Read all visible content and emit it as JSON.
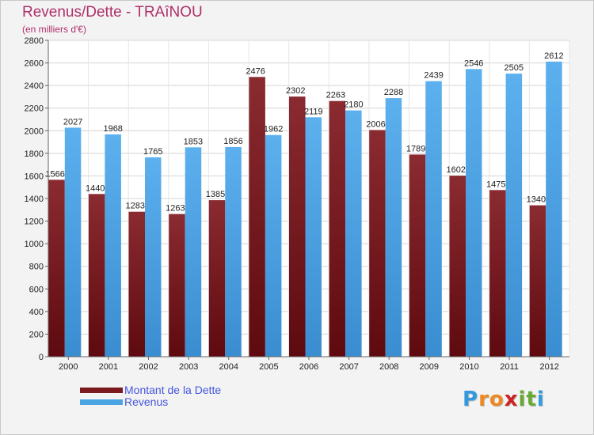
{
  "header": {
    "title": "Revenus/Dette - TRAîNOU",
    "subtitle": "(en milliers d'€)"
  },
  "legend": {
    "items": [
      {
        "label": "Montant de la Dette",
        "color": "#7a1a1f"
      },
      {
        "label": "Revenus",
        "color": "#4aa3e3"
      }
    ]
  },
  "logo": {
    "letters": [
      {
        "ch": "P",
        "color": "#3399dd"
      },
      {
        "ch": "r",
        "color": "#ee8822"
      },
      {
        "ch": "o",
        "color": "#ee8822"
      },
      {
        "ch": "x",
        "color": "#cc2222"
      },
      {
        "ch": "i",
        "color": "#66aa33"
      },
      {
        "ch": "t",
        "color": "#66aa33"
      },
      {
        "ch": "i",
        "color": "#3399dd"
      }
    ]
  },
  "chart_data": {
    "type": "bar",
    "categories": [
      "2000",
      "2001",
      "2002",
      "2003",
      "2004",
      "2005",
      "2006",
      "2007",
      "2008",
      "2009",
      "2010",
      "2011",
      "2012"
    ],
    "series": [
      {
        "name": "Montant de la Dette",
        "color": "#7a1a1f",
        "values": [
          1566,
          1440,
          1283,
          1263,
          1385,
          2476,
          2302,
          2263,
          2006,
          1789,
          1602,
          1475,
          1340
        ],
        "labels": [
          "1566",
          "1440",
          "1283",
          "1263",
          "1385",
          "2476",
          "2302",
          "2263",
          "2006",
          "1789",
          "1602",
          "1475",
          "1340"
        ]
      },
      {
        "name": "Revenus",
        "color": "#4aa3e3",
        "values": [
          2027,
          1968,
          1765,
          1853,
          1856,
          1962,
          2119,
          2180,
          2288,
          2439,
          2546,
          2505,
          2612
        ],
        "labels": [
          "2027",
          "1968",
          "1765",
          "1853",
          "1856",
          "1962",
          "2119",
          "2180",
          "2288",
          "2439",
          "2546",
          "2505",
          "2612"
        ]
      }
    ],
    "yticks": [
      "0",
      "200",
      "400",
      "600",
      "800",
      "1000",
      "1200",
      "1400",
      "1600",
      "1800",
      "2000",
      "2200",
      "2400",
      "2600",
      "2800"
    ],
    "ylim": [
      0,
      2800
    ],
    "grid": true,
    "legend_position": "bottom-left"
  }
}
